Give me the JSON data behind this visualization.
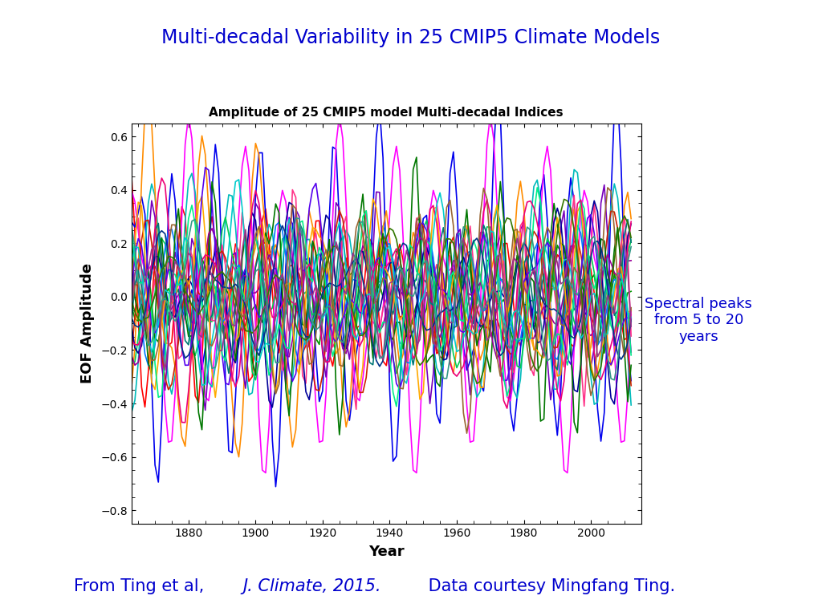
{
  "title": "Multi-decadal Variability in 25 CMIP5 Climate Models",
  "subplot_title": "Amplitude of 25 CMIP5 model Multi-decadal Indices",
  "xlabel": "Year",
  "ylabel": "EOF Amplitude",
  "annotation": "Spectral peaks\nfrom 5 to 20\nyears",
  "annotation_color": "#0000CD",
  "title_color": "#0000CD",
  "bottom_color": "#0000CD",
  "year_start": 1861,
  "year_end": 2012,
  "ylim": [
    -0.85,
    0.65
  ],
  "yticks": [
    -0.8,
    -0.6,
    -0.4,
    -0.2,
    0.0,
    0.2,
    0.4,
    0.6
  ],
  "xticks": [
    1880,
    1900,
    1920,
    1940,
    1960,
    1980,
    2000
  ],
  "n_models": 25,
  "line_colors": [
    "#FF0000",
    "#0000EE",
    "#009900",
    "#FF00FF",
    "#00BBBB",
    "#FF8C00",
    "#7700BB",
    "#00CC55",
    "#FF3388",
    "#0077FF",
    "#CC2200",
    "#000099",
    "#007700",
    "#990099",
    "#007777",
    "#FFAA00",
    "#5500EE",
    "#00EE88",
    "#EE0077",
    "#00CCCC",
    "#996633",
    "#003388",
    "#337700",
    "#993388",
    "#339988"
  ],
  "line_width": 1.2,
  "seed": 7,
  "background_color": "#FFFFFF"
}
